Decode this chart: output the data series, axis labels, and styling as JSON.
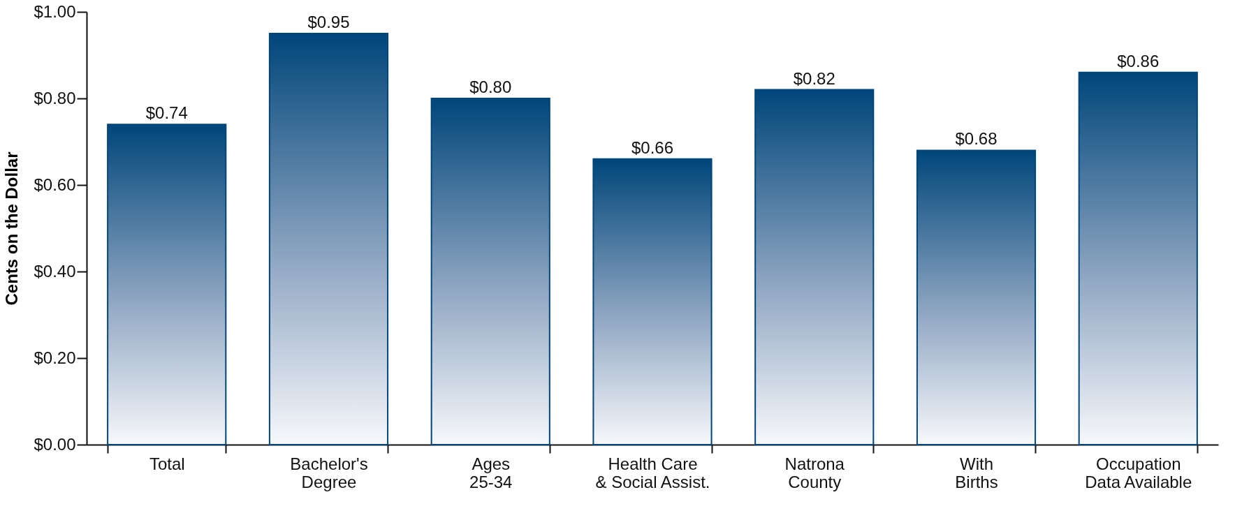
{
  "chart_data": {
    "type": "bar",
    "ylabel": "Cents on the Dollar",
    "categories": [
      "Total",
      "Bachelor's\nDegree",
      "Ages\n25-34",
      "Health Care\n& Social Assist.",
      "Natrona\nCounty",
      "With\nBirths",
      "Occupation\nData Available"
    ],
    "values": [
      0.74,
      0.95,
      0.8,
      0.66,
      0.82,
      0.68,
      0.86
    ],
    "value_labels": [
      "$0.74",
      "$0.95",
      "$0.80",
      "$0.66",
      "$0.82",
      "$0.68",
      "$0.86"
    ],
    "color": "#00467a",
    "ylim": [
      0,
      1
    ],
    "yticks": [
      {
        "value": 0,
        "label": "$0.00"
      },
      {
        "value": 0.2,
        "label": "$0.20"
      },
      {
        "value": 0.4,
        "label": "$0.40"
      },
      {
        "value": 0.6,
        "label": "$0.60"
      },
      {
        "value": 0.8,
        "label": "$0.80"
      },
      {
        "value": 1,
        "label": "$1.00"
      }
    ],
    "grid": false
  }
}
